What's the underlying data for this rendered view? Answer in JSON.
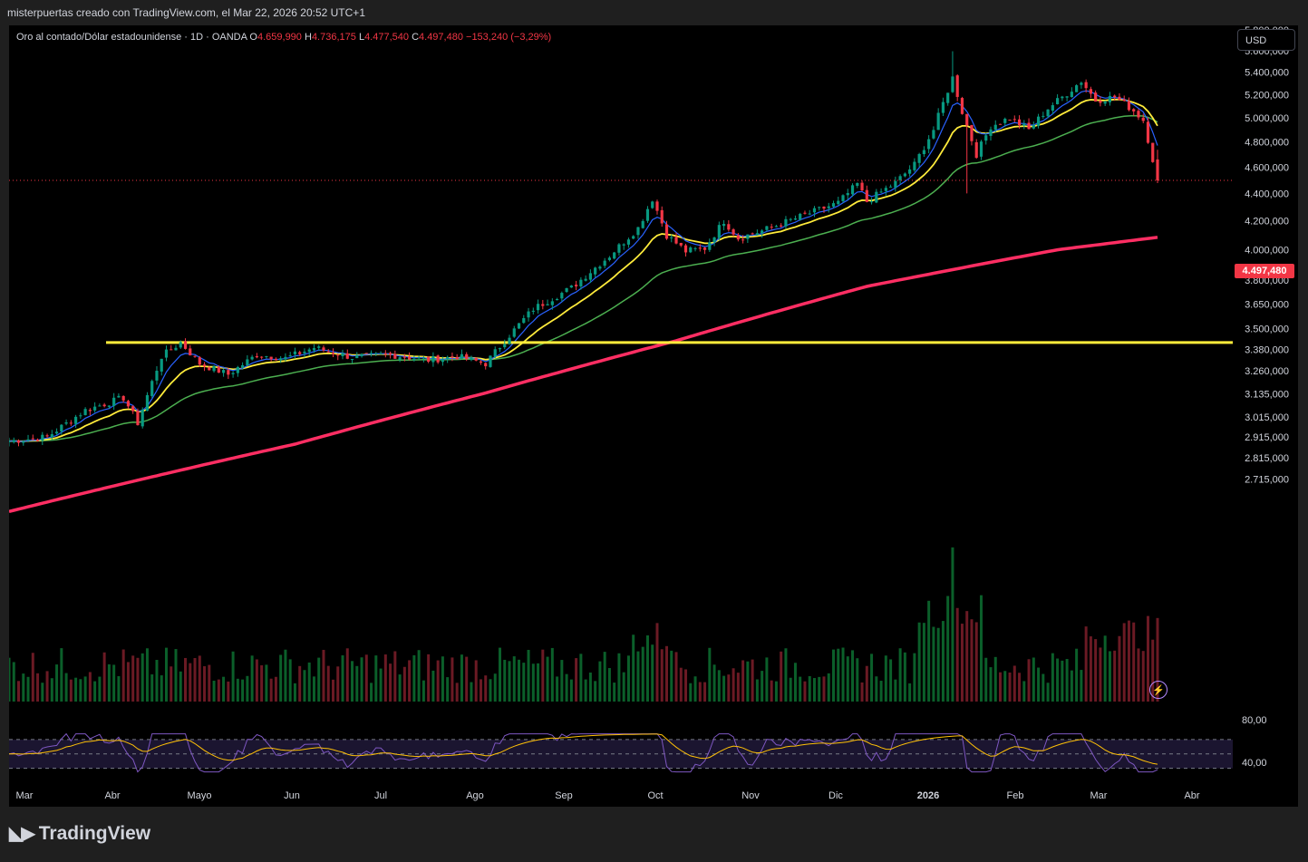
{
  "header": {
    "caption": "misterpuertas creado con TradingView.com, el Mar 22, 2026 20:52 UTC+1"
  },
  "legend": {
    "symbol": "Oro al contado/Dólar estadounidense · 1D · OANDA",
    "open_label": "O",
    "open": "4.659,990",
    "high_label": "H",
    "high": "4.736,175",
    "low_label": "L",
    "low": "4.477,540",
    "close_label": "C",
    "close": "4.497,480",
    "change": "−153,240 (−3,29%)"
  },
  "toolbar": {
    "currency": "USD"
  },
  "last_price_tag": "4.497,480",
  "brand": {
    "name": "TradingView"
  },
  "colors": {
    "up": "#089981",
    "down": "#f23645",
    "ema_fast": "#2962ff",
    "ema_mid": "#ffeb3b",
    "ma_slow": "#4caf50",
    "ma_200": "#ff2e63",
    "support_line": "#ffeb3b",
    "rsi": "#7e57c2",
    "rsi_ma": "#ffc107"
  },
  "chart_data": {
    "type": "candlestick",
    "symbol": "XAUUSD",
    "interval": "1D",
    "scale": "log",
    "price_axis_labels": [
      5800,
      5600,
      5400,
      5200,
      5000,
      4800,
      4600,
      4400,
      4200,
      4000,
      3800,
      3650,
      3500,
      3380,
      3260,
      3135,
      3015,
      2915,
      2815,
      2715
    ],
    "price_axis_text": [
      "5.800,000",
      "5.600,000",
      "5.400,000",
      "5.200,000",
      "5.000,000",
      "4.800,000",
      "4.600,000",
      "4.400,000",
      "4.200,000",
      "4.000,000",
      "3.800,000",
      "3.650,000",
      "3.500,000",
      "3.380,000",
      "3.260,000",
      "3.135,000",
      "3.015,000",
      "2.915,000",
      "2.815,000",
      "2.715,000"
    ],
    "time_axis_labels": [
      "Mar",
      "Abr",
      "Mayo",
      "Jun",
      "Jul",
      "Ago",
      "Sep",
      "Oct",
      "Nov",
      "Dic",
      "2026",
      "Feb",
      "Mar",
      "Abr"
    ],
    "price_anchors": [
      {
        "t": 0,
        "p": 2895
      },
      {
        "t": 8,
        "p": 2915
      },
      {
        "t": 16,
        "p": 3050
      },
      {
        "t": 24,
        "p": 3115
      },
      {
        "t": 27,
        "p": 2985
      },
      {
        "t": 32,
        "p": 3340
      },
      {
        "t": 36,
        "p": 3420
      },
      {
        "t": 40,
        "p": 3300
      },
      {
        "t": 46,
        "p": 3240
      },
      {
        "t": 52,
        "p": 3350
      },
      {
        "t": 58,
        "p": 3330
      },
      {
        "t": 64,
        "p": 3390
      },
      {
        "t": 72,
        "p": 3335
      },
      {
        "t": 80,
        "p": 3350
      },
      {
        "t": 88,
        "p": 3320
      },
      {
        "t": 94,
        "p": 3340
      },
      {
        "t": 100,
        "p": 3300
      },
      {
        "t": 104,
        "p": 3430
      },
      {
        "t": 110,
        "p": 3620
      },
      {
        "t": 118,
        "p": 3750
      },
      {
        "t": 126,
        "p": 3960
      },
      {
        "t": 132,
        "p": 4150
      },
      {
        "t": 135,
        "p": 4360
      },
      {
        "t": 138,
        "p": 4100
      },
      {
        "t": 142,
        "p": 3990
      },
      {
        "t": 146,
        "p": 4010
      },
      {
        "t": 150,
        "p": 4200
      },
      {
        "t": 153,
        "p": 4080
      },
      {
        "t": 158,
        "p": 4130
      },
      {
        "t": 166,
        "p": 4230
      },
      {
        "t": 174,
        "p": 4330
      },
      {
        "t": 178,
        "p": 4470
      },
      {
        "t": 180,
        "p": 4340
      },
      {
        "t": 186,
        "p": 4480
      },
      {
        "t": 190,
        "p": 4620
      },
      {
        "t": 194,
        "p": 4900
      },
      {
        "t": 198,
        "p": 5350
      },
      {
        "t": 200,
        "p": 5050
      },
      {
        "t": 203,
        "p": 4700
      },
      {
        "t": 206,
        "p": 4930
      },
      {
        "t": 210,
        "p": 5000
      },
      {
        "t": 214,
        "p": 4900
      },
      {
        "t": 218,
        "p": 5080
      },
      {
        "t": 222,
        "p": 5210
      },
      {
        "t": 225,
        "p": 5320
      },
      {
        "t": 228,
        "p": 5150
      },
      {
        "t": 232,
        "p": 5180
      },
      {
        "t": 234,
        "p": 5120
      },
      {
        "t": 236,
        "p": 5060
      },
      {
        "t": 238,
        "p": 4980
      },
      {
        "t": 240,
        "p": 4660
      },
      {
        "t": 241,
        "p": 4497
      }
    ],
    "horizontal_line": 3420,
    "last_price": 4497.48,
    "ma200_anchors": [
      {
        "t": 0,
        "p": 2570
      },
      {
        "t": 60,
        "p": 2880
      },
      {
        "t": 100,
        "p": 3140
      },
      {
        "t": 140,
        "p": 3430
      },
      {
        "t": 180,
        "p": 3760
      },
      {
        "t": 220,
        "p": 4000
      },
      {
        "t": 241,
        "p": 4085
      }
    ],
    "rsi": {
      "levels": [
        70,
        50,
        30
      ],
      "axis_labels": [
        "80,00",
        "40,00"
      ]
    }
  }
}
